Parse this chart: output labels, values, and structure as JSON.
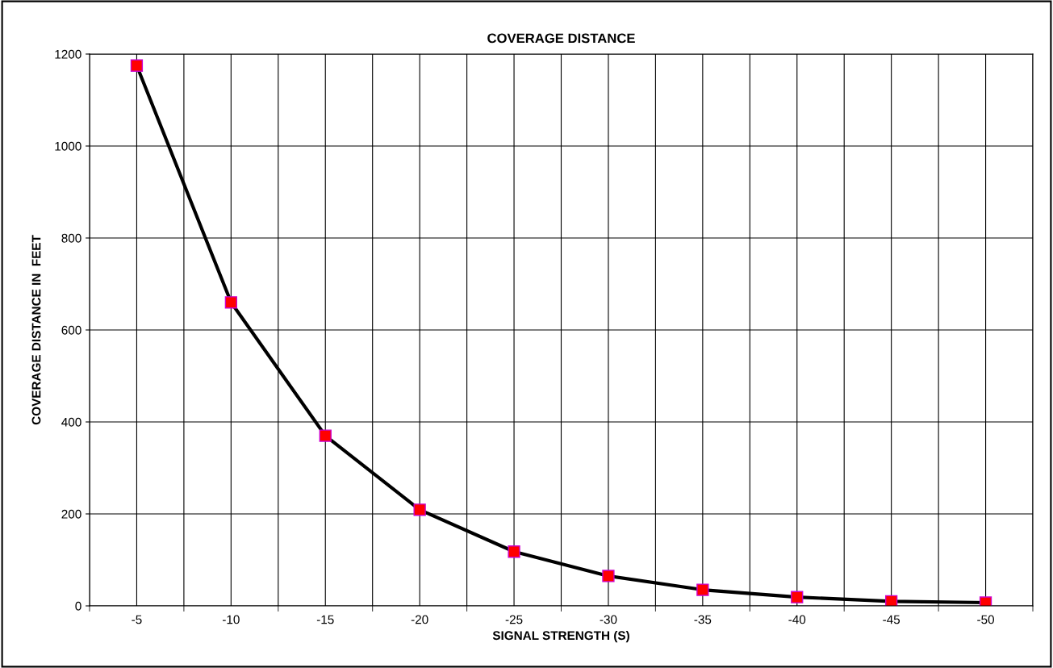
{
  "chart_data": {
    "type": "line",
    "title": "COVERAGE DISTANCE",
    "xlabel": "SIGNAL STRENGTH (S)",
    "ylabel": "COVERAGE DISTANCE IN  FEET",
    "categories": [
      "-5",
      "-10",
      "-15",
      "-20",
      "-25",
      "-30",
      "-35",
      "-40",
      "-45",
      "-50"
    ],
    "series": [
      {
        "color": "#000000",
        "values": [
          1175,
          660,
          370,
          209,
          118,
          65,
          35,
          19,
          10,
          7
        ]
      }
    ],
    "ylim": [
      0,
      1200
    ],
    "yticks": [
      0,
      200,
      400,
      600,
      800,
      1000,
      1200
    ],
    "grid": true,
    "marker": "square",
    "legend": false
  }
}
